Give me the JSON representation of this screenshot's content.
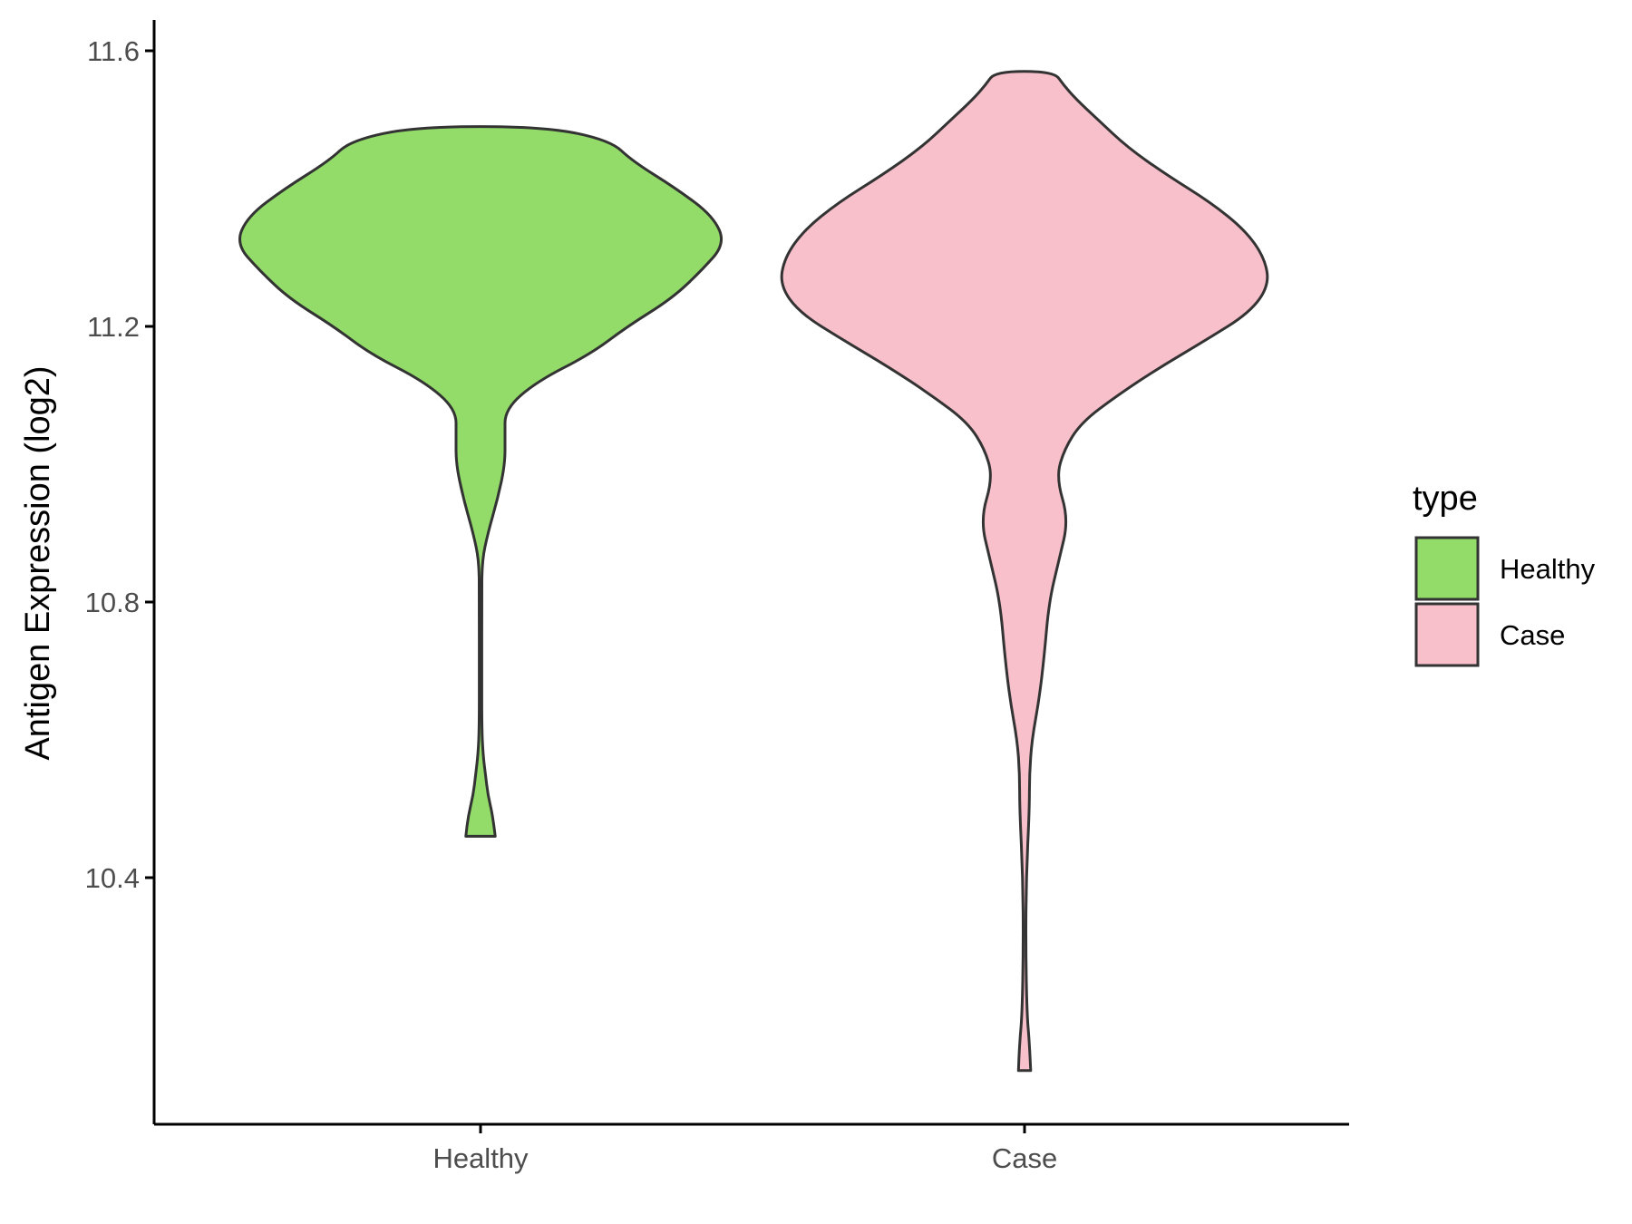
{
  "chart_data": {
    "type": "violin",
    "title": "",
    "xlabel": "",
    "ylabel": "Antigen Expression (log2)",
    "ylim": [
      10.05,
      11.64
    ],
    "yticks": [
      10.4,
      10.8,
      11.2,
      11.6
    ],
    "ytick_labels": [
      "10.4",
      "10.8",
      "11.2",
      "11.6"
    ],
    "categories": [
      "Healthy",
      "Case"
    ],
    "grid": false,
    "legend": {
      "title": "type",
      "position": "right",
      "entries": [
        {
          "label": "Healthy",
          "color": "#93DC6A"
        },
        {
          "label": "Case",
          "color": "#F8C0CB"
        }
      ]
    },
    "series": [
      {
        "name": "Healthy",
        "color": "#93DC6A",
        "outline": "#333333",
        "y_min": 10.46,
        "y_max": 11.49,
        "density_profile": [
          [
            10.46,
            0.06
          ],
          [
            10.49,
            0.05
          ],
          [
            10.52,
            0.03
          ],
          [
            10.55,
            0.02
          ],
          [
            10.58,
            0.01
          ],
          [
            10.62,
            0.005
          ],
          [
            10.7,
            0.005
          ],
          [
            10.8,
            0.005
          ],
          [
            10.86,
            0.006
          ],
          [
            10.9,
            0.03
          ],
          [
            10.95,
            0.07
          ],
          [
            11.0,
            0.1
          ],
          [
            11.04,
            0.1
          ],
          [
            11.08,
            0.1
          ],
          [
            11.12,
            0.23
          ],
          [
            11.16,
            0.45
          ],
          [
            11.2,
            0.6
          ],
          [
            11.24,
            0.78
          ],
          [
            11.28,
            0.9
          ],
          [
            11.32,
            1.0
          ],
          [
            11.36,
            0.95
          ],
          [
            11.4,
            0.8
          ],
          [
            11.44,
            0.62
          ],
          [
            11.47,
            0.53
          ],
          [
            11.49,
            0.26
          ]
        ]
      },
      {
        "name": "Case",
        "color": "#F8C0CB",
        "outline": "#333333",
        "y_min": 10.12,
        "y_max": 11.57,
        "density_profile": [
          [
            10.12,
            0.025
          ],
          [
            10.16,
            0.02
          ],
          [
            10.2,
            0.01
          ],
          [
            10.3,
            0.005
          ],
          [
            10.4,
            0.007
          ],
          [
            10.5,
            0.02
          ],
          [
            10.55,
            0.02
          ],
          [
            10.6,
            0.03
          ],
          [
            10.66,
            0.06
          ],
          [
            10.72,
            0.08
          ],
          [
            10.8,
            0.1
          ],
          [
            10.86,
            0.14
          ],
          [
            10.92,
            0.18
          ],
          [
            10.98,
            0.13
          ],
          [
            11.02,
            0.16
          ],
          [
            11.06,
            0.23
          ],
          [
            11.1,
            0.38
          ],
          [
            11.14,
            0.55
          ],
          [
            11.18,
            0.74
          ],
          [
            11.22,
            0.92
          ],
          [
            11.26,
            1.0
          ],
          [
            11.3,
            0.98
          ],
          [
            11.34,
            0.9
          ],
          [
            11.38,
            0.76
          ],
          [
            11.42,
            0.58
          ],
          [
            11.46,
            0.42
          ],
          [
            11.5,
            0.3
          ],
          [
            11.53,
            0.21
          ],
          [
            11.55,
            0.16
          ],
          [
            11.57,
            0.12
          ]
        ]
      }
    ]
  }
}
